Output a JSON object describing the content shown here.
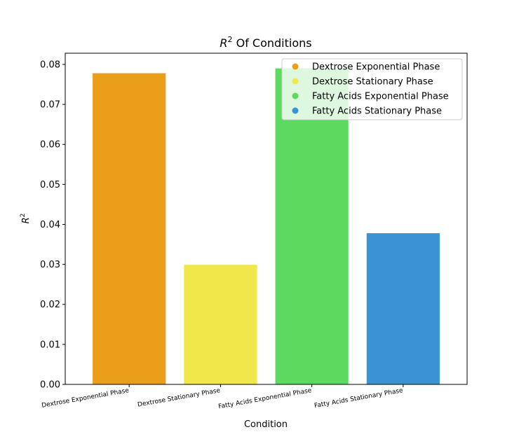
{
  "chart_data": {
    "type": "bar",
    "title_base": "R",
    "title_sup": "2",
    "title_rest": " Of Conditions",
    "xlabel": "Condition",
    "ylabel_base": "R",
    "ylabel_sup": "2",
    "categories": [
      "Dextrose Exponential Phase",
      "Dextrose Stationary Phase",
      "Fatty Acids Exponential Phase",
      "Fatty Acids Stationary Phase"
    ],
    "values": [
      0.0778,
      0.0299,
      0.079,
      0.0378
    ],
    "colors": [
      "#EB9E1A",
      "#F0E84A",
      "#5CD95F",
      "#3A94D3"
    ],
    "ylim": [
      0,
      0.0828
    ],
    "yticks": [
      "0.00",
      "0.01",
      "0.02",
      "0.03",
      "0.04",
      "0.05",
      "0.06",
      "0.07",
      "0.08"
    ],
    "ytick_values": [
      0,
      0.01,
      0.02,
      0.03,
      0.04,
      0.05,
      0.06,
      0.07,
      0.08
    ],
    "legend_position": "top-right",
    "grid": false
  }
}
